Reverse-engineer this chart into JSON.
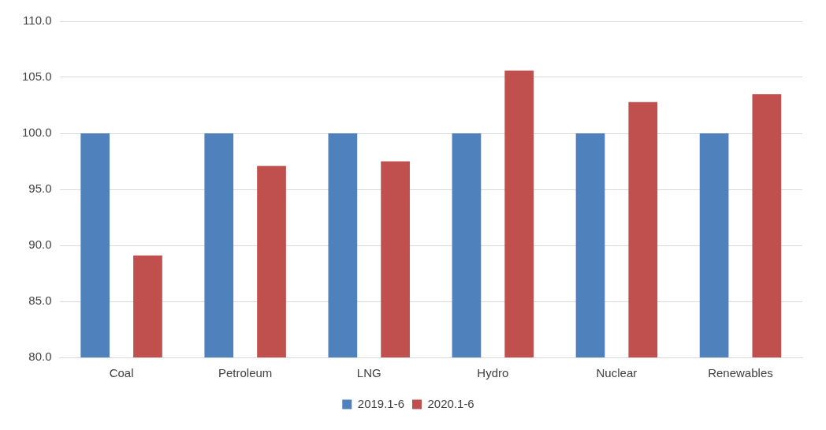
{
  "chart_data": {
    "type": "bar",
    "categories": [
      "Coal",
      "Petroleum",
      "LNG",
      "Hydro",
      "Nuclear",
      "Renewables"
    ],
    "series": [
      {
        "name": "2019.1-6",
        "color": "#4f81bd",
        "values": [
          100,
          100,
          100,
          100,
          100,
          100
        ]
      },
      {
        "name": "2020.1-6",
        "color": "#c0504d",
        "values": [
          89.1,
          97.1,
          97.5,
          105.6,
          102.8,
          103.5
        ]
      }
    ],
    "ylim": [
      80,
      110
    ],
    "yticks": [
      {
        "value": 80,
        "label": "80.0"
      },
      {
        "value": 85,
        "label": "85.0"
      },
      {
        "value": 90,
        "label": "90.0"
      },
      {
        "value": 95,
        "label": "95.0"
      },
      {
        "value": 100,
        "label": "100.0"
      },
      {
        "value": 105,
        "label": "105.0"
      },
      {
        "value": 110,
        "label": "110.0"
      }
    ],
    "grid": "y",
    "legend": "bottom"
  }
}
